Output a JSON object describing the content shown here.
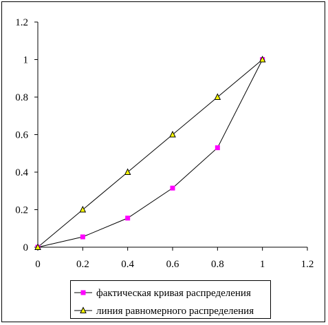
{
  "chart_data": {
    "type": "line",
    "x_ticks": [
      "0",
      "0.2",
      "0.4",
      "0.6",
      "0.8",
      "1",
      "1.2"
    ],
    "y_ticks": [
      "0",
      "0.2",
      "0.4",
      "0.6",
      "0.8",
      "1",
      "1.2"
    ],
    "xlim": [
      0,
      1.2
    ],
    "ylim": [
      0,
      1.2
    ],
    "grid": false,
    "legend_position": "bottom",
    "series": [
      {
        "name": "фактическая кривая распределения",
        "marker": "square",
        "color": "#ff00ff",
        "x": [
          0,
          0.2,
          0.4,
          0.6,
          0.8,
          1.0
        ],
        "y": [
          0,
          0.055,
          0.155,
          0.315,
          0.53,
          1.0
        ]
      },
      {
        "name": "линия равномерного распределения",
        "marker": "triangle",
        "color": "#ffff00",
        "x": [
          0,
          0.2,
          0.4,
          0.6,
          0.8,
          1.0
        ],
        "y": [
          0,
          0.2,
          0.4,
          0.6,
          0.8,
          1.0
        ]
      }
    ]
  }
}
